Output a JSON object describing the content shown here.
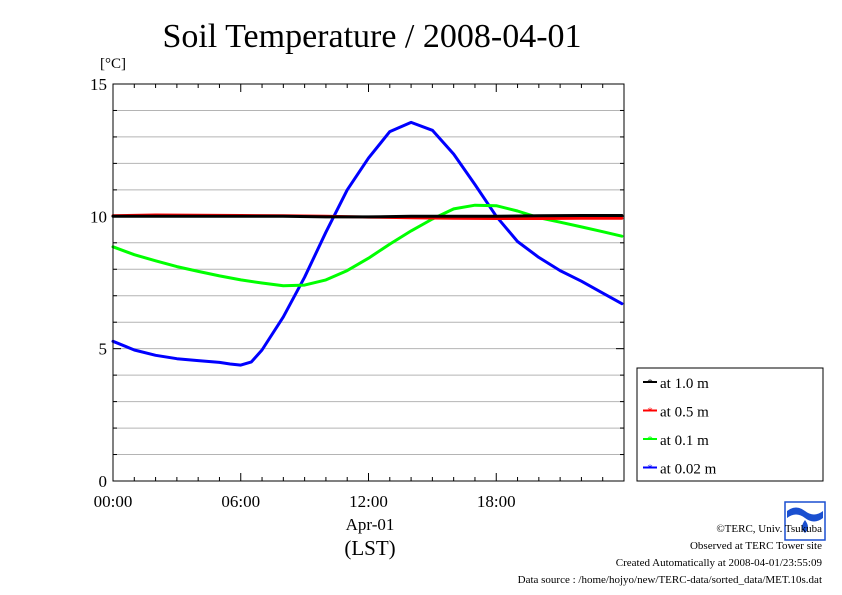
{
  "chart_data": {
    "type": "line",
    "title": "Soil Temperature / 2008-04-01",
    "y_unit": "[°C]",
    "ylim": [
      0,
      15
    ],
    "yticks": [
      0,
      5,
      10,
      15
    ],
    "xlim": [
      0,
      24
    ],
    "xticks": [
      {
        "value": 0,
        "label": "00:00"
      },
      {
        "value": 6,
        "label": "06:00"
      },
      {
        "value": 12,
        "label": "12:00"
      },
      {
        "value": 18,
        "label": "18:00"
      }
    ],
    "x_date": "Apr-01",
    "x_unit": "(LST)",
    "grid": true,
    "legend_position": "bottom-right outside",
    "series": [
      {
        "name": "at 1.0 m",
        "color": "#000000",
        "x": [
          0,
          2,
          4,
          6,
          8,
          10,
          12,
          14,
          16,
          18,
          20,
          22,
          23.9
        ],
        "y": [
          10.0,
          10.0,
          10.0,
          10.0,
          10.0,
          9.98,
          9.98,
          10.0,
          10.0,
          10.0,
          10.02,
          10.03,
          10.03
        ]
      },
      {
        "name": "at 0.5 m",
        "color": "#ff0000",
        "x": [
          0,
          2,
          4,
          6,
          8,
          10,
          12,
          14,
          16,
          18,
          20,
          22,
          23.9
        ],
        "y": [
          10.02,
          10.05,
          10.04,
          10.03,
          10.02,
          10.0,
          9.97,
          9.95,
          9.93,
          9.92,
          9.92,
          9.93,
          9.93
        ]
      },
      {
        "name": "at 0.1 m",
        "color": "#00ff00",
        "x": [
          0,
          1,
          2,
          3,
          4,
          5,
          6,
          7,
          8,
          9,
          10,
          11,
          12,
          13,
          14,
          15,
          16,
          17,
          18,
          19,
          20,
          21,
          22,
          23,
          23.9
        ],
        "y": [
          8.85,
          8.55,
          8.32,
          8.1,
          7.92,
          7.75,
          7.6,
          7.48,
          7.38,
          7.4,
          7.6,
          7.95,
          8.42,
          8.95,
          9.45,
          9.9,
          10.28,
          10.42,
          10.4,
          10.2,
          9.95,
          9.78,
          9.6,
          9.42,
          9.25
        ]
      },
      {
        "name": "at 0.02 m",
        "color": "#0000ff",
        "x": [
          0,
          1,
          2,
          3,
          4,
          5,
          5.5,
          6,
          6.5,
          7,
          8,
          9,
          10,
          11,
          12,
          13,
          14,
          15,
          16,
          17,
          18,
          19,
          20,
          21,
          22,
          23,
          23.9
        ],
        "y": [
          5.28,
          4.95,
          4.75,
          4.62,
          4.55,
          4.48,
          4.42,
          4.38,
          4.5,
          4.95,
          6.2,
          7.7,
          9.4,
          11.0,
          12.2,
          13.2,
          13.55,
          13.25,
          12.35,
          11.2,
          10.0,
          9.05,
          8.45,
          7.95,
          7.55,
          7.1,
          6.7
        ]
      }
    ]
  },
  "credits": {
    "copyright": "©TERC, Univ. Tsukuba",
    "observed": "Observed at TERC Tower site",
    "created": "Created Automatically at 2008-04-01/23:55:09",
    "source": "Data source : /home/hojyo/new/TERC-data/sorted_data/MET.10s.dat"
  },
  "logo": {
    "text": "TERC",
    "color": "#1a4fd0"
  }
}
